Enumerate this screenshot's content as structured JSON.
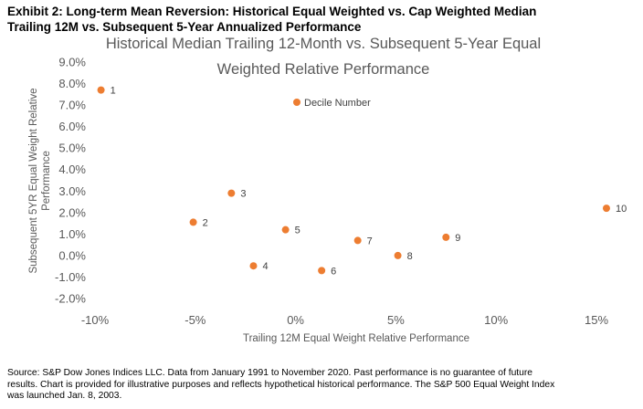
{
  "exhibit": {
    "title_line1": "Exhibit 2: Long-term Mean Reversion: Historical Equal Weighted vs. Cap Weighted Median",
    "title_line2": "Trailing 12M vs. Subsequent 5-Year Annualized Performance"
  },
  "chart_data": {
    "type": "scatter",
    "title": [
      "Historical Median Trailing 12-Month vs. Subsequent 5-Year Equal",
      "Weighted Relative Performance"
    ],
    "xlabel": "Trailing 12M Equal Weight Relative Performance",
    "ylabel": [
      "Subsequent 5YR Equal Weight Relative",
      "Performance"
    ],
    "xlim": [
      -10,
      15
    ],
    "ylim": [
      -2,
      9
    ],
    "x_ticks": [
      -10,
      -5,
      0,
      5,
      10,
      15
    ],
    "y_ticks": [
      -2,
      -1,
      0,
      1,
      2,
      3,
      4,
      5,
      6,
      7,
      8,
      9
    ],
    "x_tick_labels": [
      "-10%",
      "-5%",
      "0%",
      "5%",
      "10%",
      "15%"
    ],
    "y_tick_labels": [
      "-2.0%",
      "-1.0%",
      "0.0%",
      "1.0%",
      "2.0%",
      "3.0%",
      "4.0%",
      "5.0%",
      "6.0%",
      "7.0%",
      "8.0%",
      "9.0%"
    ],
    "grid": false,
    "legend_position": "top-center",
    "legend_label": "Decile Number",
    "marker_color": "#ED7D31",
    "points": [
      {
        "label": "1",
        "x": -9.7,
        "y": 7.7
      },
      {
        "label": "2",
        "x": -5.1,
        "y": 1.55
      },
      {
        "label": "3",
        "x": -3.2,
        "y": 2.9
      },
      {
        "label": "4",
        "x": -2.1,
        "y": -0.48
      },
      {
        "label": "5",
        "x": -0.5,
        "y": 1.2
      },
      {
        "label": "6",
        "x": 1.3,
        "y": -0.7
      },
      {
        "label": "7",
        "x": 3.1,
        "y": 0.7
      },
      {
        "label": "8",
        "x": 5.1,
        "y": 0.0
      },
      {
        "label": "9",
        "x": 7.5,
        "y": 0.85
      },
      {
        "label": "10",
        "x": 15.5,
        "y": 2.2
      }
    ]
  },
  "footnote": {
    "line1": "Source: S&P Dow Jones Indices LLC. Data from January 1991 to November 2020. Past performance is no guarantee of future",
    "line2": "results. Chart is provided for illustrative purposes and reflects hypothetical historical performance. The S&P 500 Equal Weight Index",
    "line3": "was launched Jan. 8, 2003."
  }
}
